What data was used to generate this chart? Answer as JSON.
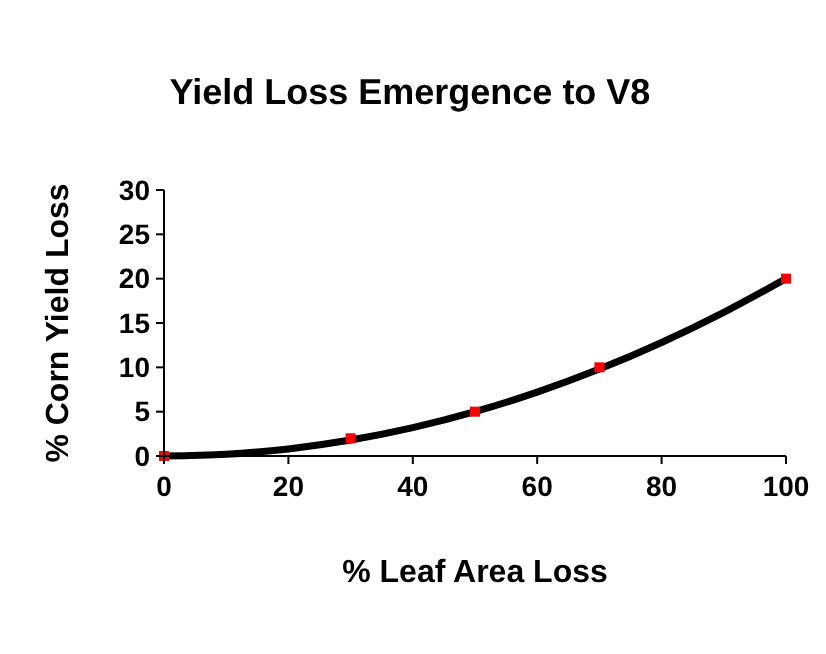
{
  "chart_data": {
    "type": "scatter",
    "title": "Yield Loss Emergence to V8",
    "xlabel": "% Leaf Area Loss",
    "ylabel": "% Corn Yield Loss",
    "xlim": [
      0,
      100
    ],
    "xticks": [
      0,
      20,
      40,
      60,
      80,
      100
    ],
    "ylim": [
      0,
      30
    ],
    "yticks": [
      0,
      5,
      10,
      15,
      20,
      25,
      30
    ],
    "grid": false,
    "series": [
      {
        "type": "line",
        "color": "#000000",
        "x": [
          0,
          10,
          20,
          30,
          40,
          50,
          60,
          70,
          80,
          90,
          100
        ],
        "values": [
          0,
          0.2,
          0.8,
          1.8,
          3.2,
          5,
          7.2,
          9.8,
          12.8,
          16.2,
          20
        ]
      },
      {
        "color": "#ff0000",
        "x": [
          0,
          30,
          50,
          70,
          100
        ],
        "values": [
          0,
          2,
          5,
          10,
          20
        ],
        "marker": "square"
      }
    ]
  }
}
